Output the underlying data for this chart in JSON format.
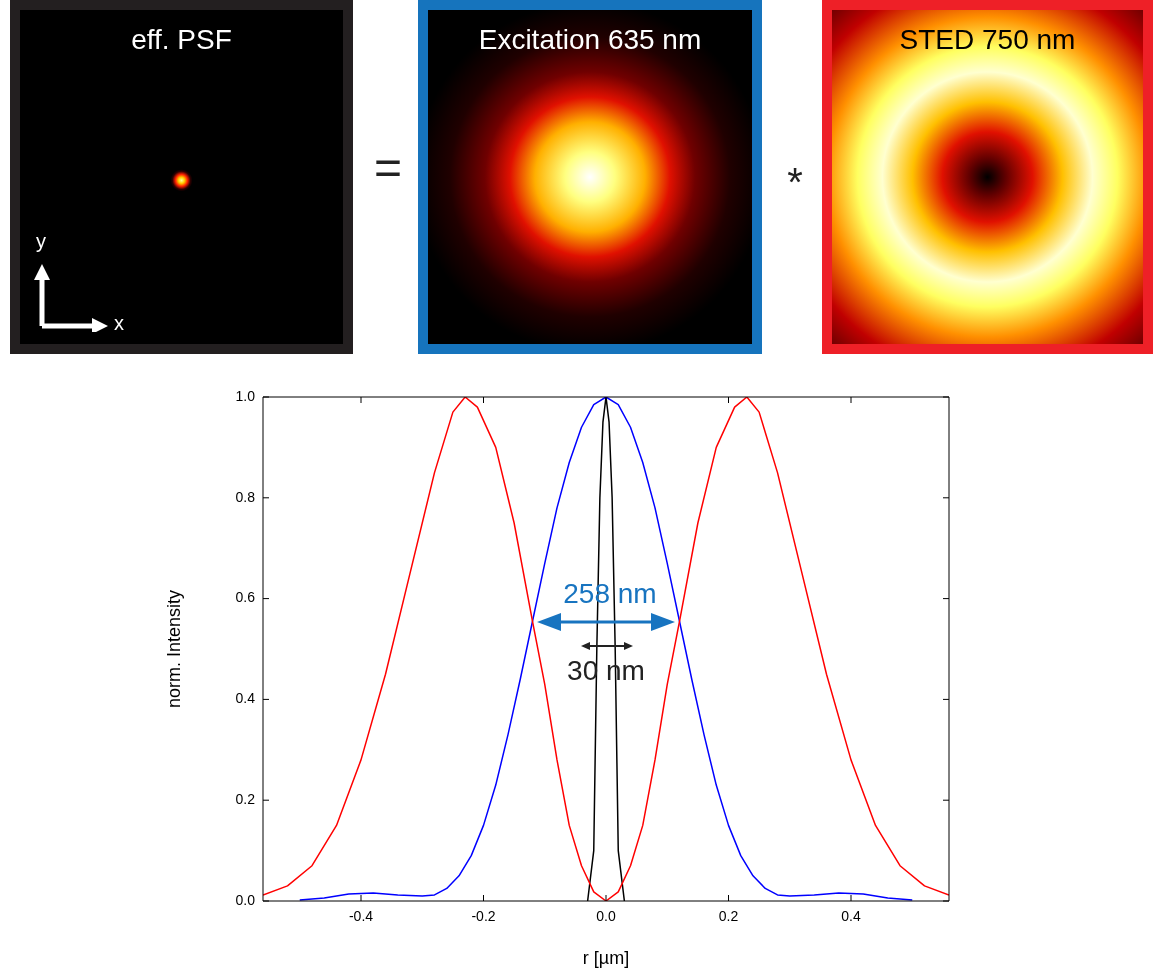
{
  "chart_data": {
    "type": "line",
    "xlabel": "r [µm]",
    "ylabel": "norm. Intensity",
    "xlim": [
      -0.56,
      0.56
    ],
    "ylim": [
      0,
      1
    ],
    "xticks": [
      {
        "value": -0.4,
        "label": "-0.4"
      },
      {
        "value": -0.2,
        "label": "-0.2"
      },
      {
        "value": 0,
        "label": "0.0"
      },
      {
        "value": 0.2,
        "label": "0.2"
      },
      {
        "value": 0.4,
        "label": "0.4"
      }
    ],
    "yticks": [
      {
        "value": 0,
        "label": "0.0"
      },
      {
        "value": 0.2,
        "label": "0.2"
      },
      {
        "value": 0.4,
        "label": "0.4"
      },
      {
        "value": 0.6,
        "label": "0.6"
      },
      {
        "value": 0.8,
        "label": "0.8"
      },
      {
        "value": 1,
        "label": "1.0"
      }
    ],
    "grid": false,
    "legend": false,
    "marker": "none",
    "line_style": "solid",
    "series": [
      {
        "color": "#ff0000",
        "x": [
          -0.56,
          -0.52,
          -0.48,
          -0.44,
          -0.4,
          -0.36,
          -0.32,
          -0.28,
          -0.25,
          -0.23,
          -0.21,
          -0.18,
          -0.15,
          -0.12,
          -0.1,
          -0.08,
          -0.06,
          -0.04,
          -0.02,
          0,
          0.02,
          0.04,
          0.06,
          0.08,
          0.1,
          0.12,
          0.15,
          0.18,
          0.21,
          0.23,
          0.25,
          0.28,
          0.32,
          0.36,
          0.4,
          0.44,
          0.48,
          0.52,
          0.56
        ],
        "values": [
          0.012,
          0.03,
          0.07,
          0.15,
          0.28,
          0.45,
          0.65,
          0.85,
          0.97,
          1,
          0.98,
          0.9,
          0.75,
          0.555,
          0.43,
          0.28,
          0.15,
          0.07,
          0.018,
          0,
          0.018,
          0.07,
          0.15,
          0.28,
          0.43,
          0.555,
          0.75,
          0.9,
          0.98,
          1,
          0.97,
          0.85,
          0.65,
          0.45,
          0.28,
          0.15,
          0.07,
          0.03,
          0.012
        ]
      },
      {
        "color": "#0000ff",
        "x": [
          -0.5,
          -0.46,
          -0.42,
          -0.38,
          -0.34,
          -0.3,
          -0.28,
          -0.26,
          -0.24,
          -0.22,
          -0.2,
          -0.18,
          -0.16,
          -0.14,
          -0.12,
          -0.1,
          -0.08,
          -0.06,
          -0.04,
          -0.02,
          0,
          0.02,
          0.04,
          0.06,
          0.08,
          0.1,
          0.12,
          0.14,
          0.16,
          0.18,
          0.2,
          0.22,
          0.24,
          0.26,
          0.28,
          0.3,
          0.34,
          0.38,
          0.42,
          0.46,
          0.5
        ],
        "values": [
          0.002,
          0.006,
          0.014,
          0.016,
          0.012,
          0.01,
          0.012,
          0.025,
          0.05,
          0.09,
          0.15,
          0.23,
          0.33,
          0.44,
          0.555,
          0.67,
          0.78,
          0.87,
          0.94,
          0.985,
          1,
          0.985,
          0.94,
          0.87,
          0.78,
          0.67,
          0.555,
          0.44,
          0.33,
          0.23,
          0.15,
          0.09,
          0.05,
          0.025,
          0.012,
          0.01,
          0.012,
          0.016,
          0.014,
          0.006,
          0.002
        ]
      },
      {
        "color": "#000000",
        "x": [
          -0.03,
          -0.02,
          -0.015,
          -0.01,
          -0.005,
          0,
          0.005,
          0.01,
          0.015,
          0.02,
          0.03
        ],
        "values": [
          0,
          0.1,
          0.5,
          0.8,
          0.95,
          1,
          0.95,
          0.8,
          0.5,
          0.1,
          0
        ]
      }
    ],
    "annotations": [
      "eff. PSF",
      "Excitation 635 nm",
      "STED 750 nm",
      "=",
      "*",
      "x",
      "y",
      "258 nm",
      "30 nm"
    ]
  }
}
